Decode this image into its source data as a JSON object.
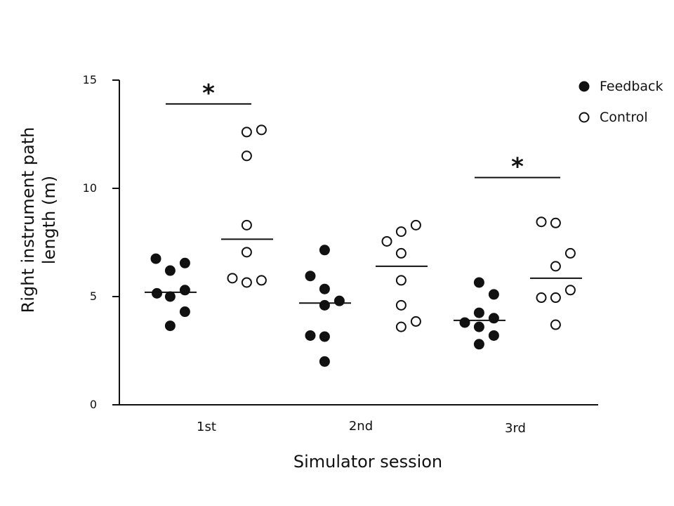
{
  "chart_data": {
    "type": "scatter",
    "xlabel": "Simulator session",
    "ylabel_line1": "Right instrument path",
    "ylabel_line2": "length (m)",
    "ylim": [
      0,
      15
    ],
    "yticks": [
      0,
      5,
      10,
      15
    ],
    "categories": [
      "1st",
      "2nd",
      "3rd"
    ],
    "legend_position": "top-right",
    "series": [
      {
        "name": "Feedback",
        "marker": "filled-circle",
        "color": "#111111",
        "values": [
          [
            6.75,
            6.2,
            6.55,
            5.15,
            5.3,
            5.0,
            4.3,
            3.65
          ],
          [
            7.15,
            5.95,
            5.35,
            4.8,
            4.6,
            3.2,
            3.15,
            2.0
          ],
          [
            5.65,
            5.1,
            4.25,
            4.0,
            3.8,
            3.6,
            3.2,
            2.8
          ]
        ],
        "jitter": [
          [
            -0.7,
            -0.02,
            0.68,
            -0.65,
            0.68,
            -0.02,
            0.68,
            -0.02
          ],
          [
            -0.02,
            -0.7,
            -0.02,
            0.68,
            -0.02,
            -0.7,
            -0.02,
            -0.02
          ],
          [
            -0.02,
            0.68,
            -0.02,
            0.68,
            -0.7,
            -0.02,
            0.68,
            -0.02
          ]
        ],
        "means": [
          5.2,
          4.7,
          3.9
        ]
      },
      {
        "name": "Control",
        "marker": "open-circle",
        "color": "#111111",
        "values": [
          [
            12.6,
            12.7,
            11.5,
            8.3,
            7.05,
            5.85,
            5.65,
            5.75
          ],
          [
            7.55,
            8.0,
            8.3,
            7.0,
            5.75,
            4.6,
            3.6,
            3.85
          ],
          [
            8.45,
            8.4,
            7.0,
            6.4,
            5.3,
            4.95,
            4.95,
            3.7
          ]
        ],
        "jitter": [
          [
            -0.02,
            0.68,
            -0.02,
            -0.02,
            -0.02,
            -0.7,
            -0.02,
            0.68
          ],
          [
            -0.7,
            -0.02,
            0.68,
            -0.02,
            -0.02,
            -0.02,
            -0.02,
            0.68
          ],
          [
            -0.7,
            -0.02,
            0.68,
            -0.02,
            0.68,
            -0.7,
            -0.02,
            -0.02
          ]
        ],
        "means": [
          7.65,
          6.4,
          5.85
        ]
      }
    ],
    "significance": [
      {
        "session": "1st",
        "label": "*",
        "level": 13.9
      },
      {
        "session": "3rd",
        "label": "*",
        "level": 10.5
      }
    ]
  }
}
